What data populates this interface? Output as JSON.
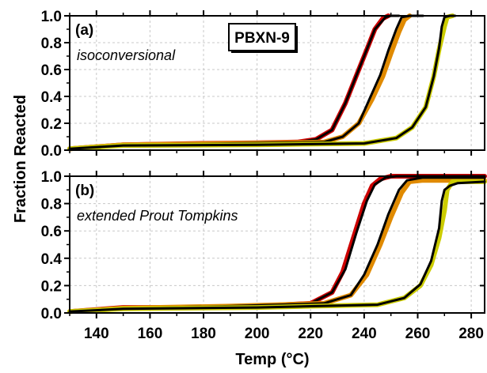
{
  "chart_data": {
    "type": "line",
    "label_box": "PBXN-9",
    "xlabel": "Temp (°C)",
    "ylabel": "Fraction Reacted",
    "xlim": [
      130,
      285
    ],
    "ylim": [
      0,
      1.0
    ],
    "x_ticks": [
      "140",
      "160",
      "180",
      "200",
      "220",
      "240",
      "260",
      "280"
    ],
    "y_ticks": [
      "0.0",
      "0.2",
      "0.4",
      "0.6",
      "0.8",
      "1.0"
    ],
    "grid": true,
    "panels": [
      {
        "letter": "(a)",
        "subtitle": "isoconversional",
        "series": [
          {
            "color": "#cc0000",
            "points": [
              [
                130,
                0.01
              ],
              [
                150,
                0.04
              ],
              [
                180,
                0.05
              ],
              [
                200,
                0.055
              ],
              [
                215,
                0.06
              ],
              [
                222,
                0.08
              ],
              [
                228,
                0.15
              ],
              [
                233,
                0.35
              ],
              [
                237,
                0.55
              ],
              [
                241,
                0.75
              ],
              [
                244,
                0.9
              ],
              [
                247,
                0.98
              ],
              [
                249,
                1.0
              ]
            ]
          },
          {
            "color": "#000000",
            "points": [
              [
                130,
                0.01
              ],
              [
                150,
                0.04
              ],
              [
                180,
                0.05
              ],
              [
                200,
                0.055
              ],
              [
                215,
                0.06
              ],
              [
                222,
                0.08
              ],
              [
                228,
                0.15
              ],
              [
                233,
                0.35
              ],
              [
                237,
                0.55
              ],
              [
                241,
                0.75
              ],
              [
                244,
                0.9
              ],
              [
                248,
                0.99
              ],
              [
                250,
                1.0
              ],
              [
                253,
                1.0
              ]
            ]
          },
          {
            "color": "#e08a00",
            "points": [
              [
                130,
                0.01
              ],
              [
                150,
                0.04
              ],
              [
                190,
                0.05
              ],
              [
                225,
                0.06
              ],
              [
                232,
                0.1
              ],
              [
                238,
                0.2
              ],
              [
                243,
                0.38
              ],
              [
                247,
                0.55
              ],
              [
                250,
                0.72
              ],
              [
                253,
                0.88
              ],
              [
                255,
                0.97
              ],
              [
                257,
                1.0
              ]
            ]
          },
          {
            "color": "#000000",
            "points": [
              [
                130,
                0.01
              ],
              [
                150,
                0.04
              ],
              [
                190,
                0.05
              ],
              [
                225,
                0.06
              ],
              [
                232,
                0.1
              ],
              [
                238,
                0.2
              ],
              [
                242,
                0.38
              ],
              [
                246,
                0.56
              ],
              [
                249,
                0.74
              ],
              [
                252,
                0.9
              ],
              [
                254,
                0.99
              ],
              [
                257,
                1.0
              ],
              [
                262,
                1.0
              ]
            ]
          },
          {
            "color": "#cccc00",
            "points": [
              [
                130,
                0.01
              ],
              [
                150,
                0.035
              ],
              [
                200,
                0.04
              ],
              [
                240,
                0.05
              ],
              [
                252,
                0.09
              ],
              [
                258,
                0.17
              ],
              [
                263,
                0.32
              ],
              [
                266,
                0.55
              ],
              [
                268,
                0.75
              ],
              [
                270,
                0.92
              ],
              [
                271,
                0.99
              ],
              [
                273,
                1.0
              ]
            ]
          },
          {
            "color": "#000000",
            "points": [
              [
                130,
                0.01
              ],
              [
                150,
                0.035
              ],
              [
                200,
                0.04
              ],
              [
                240,
                0.05
              ],
              [
                252,
                0.09
              ],
              [
                258,
                0.17
              ],
              [
                263,
                0.32
              ],
              [
                266,
                0.55
              ],
              [
                268,
                0.76
              ],
              [
                269,
                0.92
              ],
              [
                270,
                0.99
              ],
              [
                272,
                1.0
              ],
              [
                274,
                1.0
              ]
            ]
          }
        ]
      },
      {
        "letter": "(b)",
        "subtitle": "extended Prout Tompkins",
        "series": [
          {
            "color": "#cc0000",
            "points": [
              [
                130,
                0.01
              ],
              [
                150,
                0.04
              ],
              [
                180,
                0.04
              ],
              [
                200,
                0.05
              ],
              [
                220,
                0.07
              ],
              [
                228,
                0.15
              ],
              [
                232,
                0.3
              ],
              [
                236,
                0.55
              ],
              [
                240,
                0.8
              ],
              [
                243,
                0.93
              ],
              [
                246,
                0.98
              ],
              [
                250,
                1.0
              ],
              [
                285,
                1.0
              ]
            ]
          },
          {
            "color": "#000000",
            "points": [
              [
                130,
                0.01
              ],
              [
                150,
                0.035
              ],
              [
                180,
                0.04
              ],
              [
                200,
                0.05
              ],
              [
                220,
                0.07
              ],
              [
                228,
                0.15
              ],
              [
                233,
                0.32
              ],
              [
                237,
                0.58
              ],
              [
                241,
                0.82
              ],
              [
                244,
                0.94
              ],
              [
                248,
                0.99
              ],
              [
                252,
                1.0
              ],
              [
                285,
                1.0
              ]
            ]
          },
          {
            "color": "#e08a00",
            "points": [
              [
                130,
                0.01
              ],
              [
                150,
                0.035
              ],
              [
                190,
                0.05
              ],
              [
                225,
                0.07
              ],
              [
                235,
                0.13
              ],
              [
                241,
                0.28
              ],
              [
                246,
                0.5
              ],
              [
                250,
                0.7
              ],
              [
                254,
                0.88
              ],
              [
                257,
                0.96
              ],
              [
                262,
                0.97
              ],
              [
                285,
                0.97
              ]
            ]
          },
          {
            "color": "#000000",
            "points": [
              [
                130,
                0.01
              ],
              [
                150,
                0.035
              ],
              [
                190,
                0.05
              ],
              [
                225,
                0.07
              ],
              [
                235,
                0.13
              ],
              [
                240,
                0.28
              ],
              [
                245,
                0.5
              ],
              [
                249,
                0.72
              ],
              [
                253,
                0.9
              ],
              [
                256,
                0.97
              ],
              [
                262,
                0.99
              ],
              [
                285,
                0.99
              ]
            ]
          },
          {
            "color": "#cccc00",
            "points": [
              [
                130,
                0.01
              ],
              [
                150,
                0.03
              ],
              [
                200,
                0.04
              ],
              [
                245,
                0.06
              ],
              [
                255,
                0.11
              ],
              [
                261,
                0.2
              ],
              [
                265,
                0.35
              ],
              [
                268,
                0.55
              ],
              [
                270,
                0.75
              ],
              [
                271,
                0.9
              ],
              [
                273,
                0.96
              ],
              [
                285,
                0.96
              ]
            ]
          },
          {
            "color": "#000000",
            "points": [
              [
                130,
                0.01
              ],
              [
                150,
                0.03
              ],
              [
                200,
                0.04
              ],
              [
                245,
                0.06
              ],
              [
                255,
                0.11
              ],
              [
                261,
                0.21
              ],
              [
                265,
                0.38
              ],
              [
                268,
                0.62
              ],
              [
                269,
                0.82
              ],
              [
                270,
                0.9
              ],
              [
                272,
                0.93
              ],
              [
                275,
                0.95
              ],
              [
                285,
                0.96
              ]
            ]
          }
        ]
      }
    ]
  }
}
